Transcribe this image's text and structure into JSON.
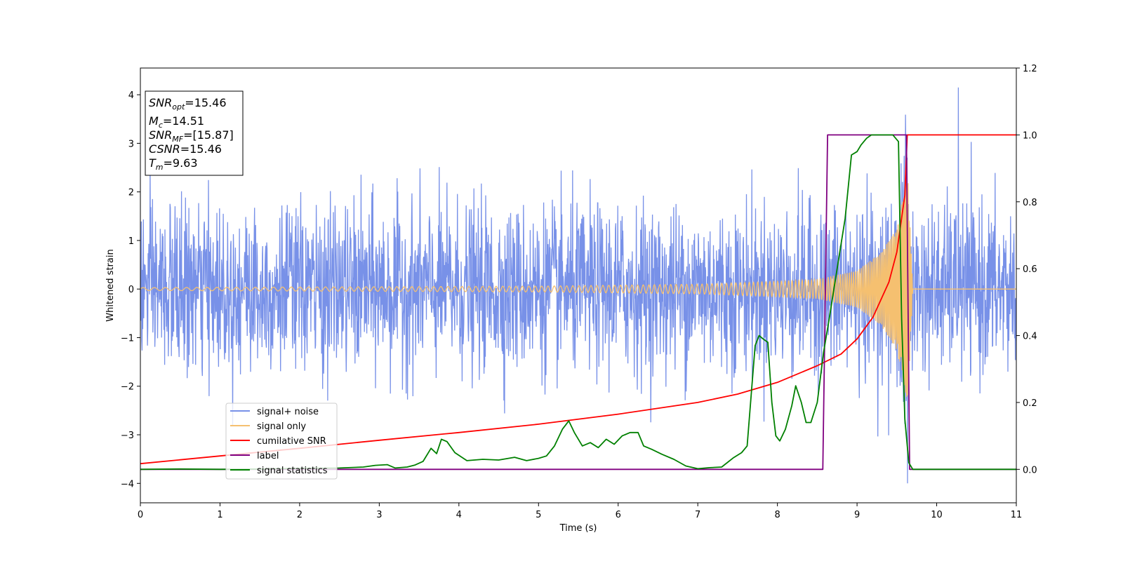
{
  "chart_data": {
    "type": "line",
    "xlabel": "Time (s)",
    "ylabel": "Whitened strain",
    "xlim": [
      0,
      11
    ],
    "ylim_left": [
      -4.4,
      4.55
    ],
    "ylim_right": [
      -0.1,
      1.2
    ],
    "x_ticks": [
      0,
      1,
      2,
      3,
      4,
      5,
      6,
      7,
      8,
      9,
      10,
      11
    ],
    "y_left_ticks": [
      -4,
      -3,
      -2,
      -1,
      0,
      1,
      2,
      3,
      4
    ],
    "y_right_ticks": [
      0.0,
      0.2,
      0.4,
      0.6,
      0.8,
      1.0,
      1.2
    ],
    "grid": false,
    "legend_position": "lower-left",
    "info_box": {
      "snr_opt": {
        "label": "SNR",
        "sub": "opt",
        "value": "=15.46"
      },
      "mc": {
        "label": "M",
        "sub": "c",
        "value": "=14.51"
      },
      "snr_mf": {
        "label": "SNR",
        "sub": "MF",
        "value": "=[15.87]"
      },
      "csnr": {
        "label": "CSNR",
        "value": "=15.46"
      },
      "tm": {
        "label": "T",
        "sub": "m",
        "value": "=9.63"
      }
    },
    "series": [
      {
        "name": "signal+ noise",
        "axis": "left",
        "color": "#7891e8",
        "kind": "noise",
        "noise_sigma": 0.85,
        "upper_envelope_typical": [
          1.8,
          2.7
        ],
        "lower_envelope_typical": [
          -1.8,
          -2.6
        ],
        "max": 4.15,
        "min": -4.0
      },
      {
        "name": "signal only",
        "axis": "left",
        "color": "#f5c070",
        "kind": "chirp",
        "envelope": {
          "x": [
            0,
            5,
            7,
            8,
            8.5,
            9,
            9.3,
            9.5,
            9.6,
            9.63,
            9.7,
            11
          ],
          "amp": [
            0.03,
            0.06,
            0.1,
            0.16,
            0.2,
            0.38,
            0.75,
            1.25,
            2.1,
            2.7,
            0,
            0
          ]
        }
      },
      {
        "name": "cumilative SNR",
        "axis": "right",
        "color": "#ff0000",
        "x": [
          0,
          1,
          2,
          3,
          4,
          5,
          6,
          7,
          7.5,
          8,
          8.5,
          8.8,
          9,
          9.2,
          9.4,
          9.5,
          9.6,
          9.63,
          11
        ],
        "y": [
          0.017,
          0.04,
          0.063,
          0.087,
          0.11,
          0.135,
          0.165,
          0.2,
          0.225,
          0.26,
          0.31,
          0.345,
          0.39,
          0.455,
          0.56,
          0.65,
          0.82,
          1.0,
          1.0
        ]
      },
      {
        "name": "label",
        "axis": "right",
        "color": "#800080",
        "x": [
          0,
          8.57,
          8.63,
          9.62,
          9.66,
          11
        ],
        "y": [
          0,
          0,
          1,
          1,
          0,
          0
        ]
      },
      {
        "name": "signal statistics",
        "axis": "right",
        "color": "#008000",
        "x": [
          0,
          0.5,
          1,
          1.5,
          2,
          2.5,
          2.8,
          2.95,
          3.1,
          3.2,
          3.35,
          3.45,
          3.55,
          3.65,
          3.72,
          3.78,
          3.85,
          3.95,
          4.1,
          4.3,
          4.5,
          4.7,
          4.85,
          5.0,
          5.1,
          5.2,
          5.3,
          5.38,
          5.45,
          5.55,
          5.65,
          5.75,
          5.85,
          5.95,
          6.05,
          6.15,
          6.25,
          6.32,
          6.42,
          6.55,
          6.7,
          6.85,
          7.0,
          7.15,
          7.3,
          7.45,
          7.55,
          7.62,
          7.68,
          7.72,
          7.77,
          7.82,
          7.88,
          7.93,
          7.98,
          8.03,
          8.1,
          8.18,
          8.23,
          8.3,
          8.36,
          8.42,
          8.5,
          8.58,
          8.65,
          8.75,
          8.85,
          8.93,
          9.0,
          9.05,
          9.12,
          9.18,
          9.25,
          9.35,
          9.45,
          9.52,
          9.56,
          9.6,
          9.65,
          9.7,
          11
        ],
        "y": [
          0,
          0.001,
          0,
          0.001,
          0.003,
          0.004,
          0.007,
          0.012,
          0.014,
          0.004,
          0.007,
          0.013,
          0.024,
          0.063,
          0.047,
          0.09,
          0.083,
          0.05,
          0.026,
          0.03,
          0.028,
          0.036,
          0.026,
          0.033,
          0.04,
          0.07,
          0.12,
          0.145,
          0.11,
          0.07,
          0.08,
          0.065,
          0.09,
          0.075,
          0.1,
          0.11,
          0.11,
          0.07,
          0.06,
          0.045,
          0.03,
          0.01,
          0.002,
          0.005,
          0.007,
          0.035,
          0.05,
          0.07,
          0.25,
          0.37,
          0.4,
          0.39,
          0.38,
          0.2,
          0.1,
          0.085,
          0.12,
          0.19,
          0.25,
          0.2,
          0.14,
          0.14,
          0.2,
          0.35,
          0.45,
          0.6,
          0.75,
          0.94,
          0.95,
          0.97,
          0.99,
          1.0,
          1.0,
          1.0,
          1.0,
          0.98,
          0.45,
          0.15,
          0.02,
          0,
          0
        ]
      }
    ]
  }
}
